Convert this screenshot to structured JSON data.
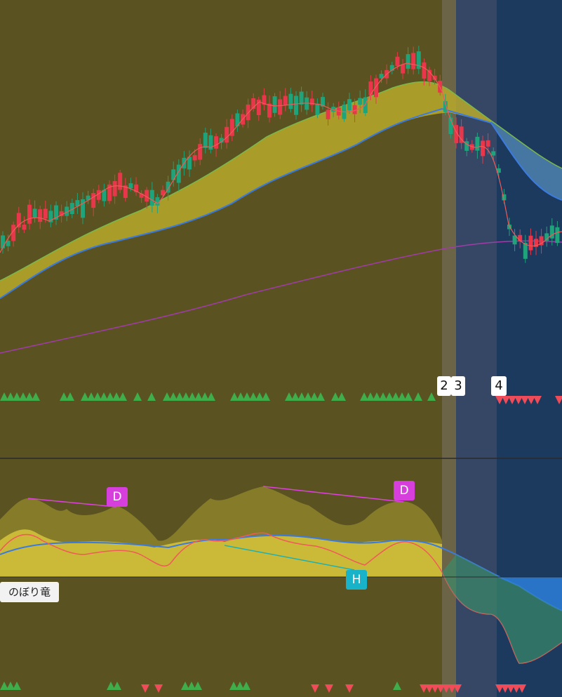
{
  "markers": [
    {
      "label": "2"
    },
    {
      "label": "3"
    },
    {
      "label": "4"
    }
  ],
  "divergence_labels": [
    "D",
    "D",
    "H"
  ],
  "indicator_label": "のぼり竜"
}
